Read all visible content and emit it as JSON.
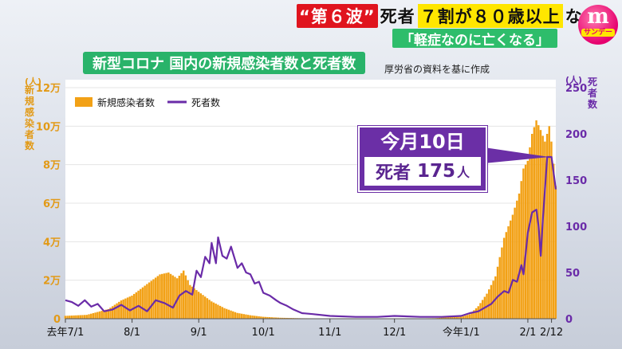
{
  "header": {
    "tag": "“第６波”",
    "text1": "死者",
    "highlight": "７割が８０歳以上",
    "text2": "なぜ",
    "sub": "「軽症なのに亡くなる」"
  },
  "logo": {
    "mark": "m",
    "name": "サンデー"
  },
  "chart_data": {
    "type": "bar+line",
    "title": "新型コロナ 国内の新規感染者数と死者数",
    "source": "厚労省の資料を基に作成",
    "left_axis": {
      "unit": "(人)",
      "label": "新規感染者数",
      "ticks": [
        0,
        20000,
        40000,
        60000,
        80000,
        100000,
        120000
      ],
      "tick_labels": [
        "0",
        "2万",
        "4万",
        "6万",
        "8万",
        "10万",
        "12万"
      ],
      "range": [
        0,
        120000
      ],
      "color": "#f2a116"
    },
    "right_axis": {
      "unit": "(人)",
      "label": "死者数",
      "ticks": [
        0,
        50,
        100,
        150,
        200,
        250
      ],
      "tick_labels": [
        "0",
        "50",
        "100",
        "150",
        "200",
        "250"
      ],
      "range": [
        0,
        250
      ],
      "color": "#6a2ba8"
    },
    "x_ticks": [
      {
        "day": 0,
        "label": "去年7/1"
      },
      {
        "day": 31,
        "label": "8/1"
      },
      {
        "day": 62,
        "label": "9/1"
      },
      {
        "day": 92,
        "label": "10/1"
      },
      {
        "day": 123,
        "label": "11/1"
      },
      {
        "day": 153,
        "label": "12/1"
      },
      {
        "day": 184,
        "label": "今年1/1"
      },
      {
        "day": 215,
        "label": "2/1"
      },
      {
        "day": 226,
        "label": "2/12"
      }
    ],
    "legend": {
      "cases": "新規感染者数",
      "deaths": "死者数",
      "position": "top-left"
    },
    "cases": [
      [
        0,
        1500
      ],
      [
        10,
        2000
      ],
      [
        20,
        5000
      ],
      [
        26,
        9500
      ],
      [
        31,
        12000
      ],
      [
        38,
        18000
      ],
      [
        44,
        23000
      ],
      [
        48,
        24000
      ],
      [
        52,
        21000
      ],
      [
        55,
        25000
      ],
      [
        58,
        17500
      ],
      [
        62,
        14000
      ],
      [
        68,
        9000
      ],
      [
        74,
        5500
      ],
      [
        80,
        3000
      ],
      [
        86,
        1800
      ],
      [
        92,
        1000
      ],
      [
        100,
        500
      ],
      [
        110,
        250
      ],
      [
        123,
        150
      ],
      [
        140,
        120
      ],
      [
        153,
        130
      ],
      [
        165,
        170
      ],
      [
        172,
        300
      ],
      [
        178,
        800
      ],
      [
        184,
        1000
      ],
      [
        188,
        2300
      ],
      [
        192,
        6500
      ],
      [
        196,
        13000
      ],
      [
        200,
        22000
      ],
      [
        204,
        42000
      ],
      [
        208,
        54000
      ],
      [
        211,
        65000
      ],
      [
        213,
        78000
      ],
      [
        215,
        82000
      ],
      [
        217,
        96000
      ],
      [
        219,
        103000
      ],
      [
        221,
        98000
      ],
      [
        223,
        92000
      ],
      [
        225,
        100000
      ],
      [
        226,
        92000
      ],
      [
        228,
        69000
      ]
    ],
    "deaths": [
      [
        0,
        20
      ],
      [
        3,
        18
      ],
      [
        6,
        14
      ],
      [
        9,
        20
      ],
      [
        12,
        13
      ],
      [
        15,
        16
      ],
      [
        18,
        8
      ],
      [
        22,
        10
      ],
      [
        26,
        15
      ],
      [
        30,
        9
      ],
      [
        34,
        14
      ],
      [
        38,
        8
      ],
      [
        42,
        20
      ],
      [
        46,
        17
      ],
      [
        50,
        12
      ],
      [
        53,
        25
      ],
      [
        56,
        30
      ],
      [
        59,
        26
      ],
      [
        61,
        52
      ],
      [
        63,
        45
      ],
      [
        65,
        67
      ],
      [
        67,
        60
      ],
      [
        68,
        82
      ],
      [
        70,
        60
      ],
      [
        71,
        88
      ],
      [
        73,
        68
      ],
      [
        75,
        65
      ],
      [
        77,
        78
      ],
      [
        80,
        55
      ],
      [
        82,
        60
      ],
      [
        84,
        50
      ],
      [
        86,
        48
      ],
      [
        88,
        38
      ],
      [
        90,
        40
      ],
      [
        92,
        28
      ],
      [
        95,
        25
      ],
      [
        98,
        20
      ],
      [
        100,
        17
      ],
      [
        103,
        14
      ],
      [
        106,
        10
      ],
      [
        110,
        6
      ],
      [
        115,
        5
      ],
      [
        123,
        3
      ],
      [
        135,
        2
      ],
      [
        145,
        2
      ],
      [
        153,
        3
      ],
      [
        165,
        2
      ],
      [
        175,
        2
      ],
      [
        184,
        3
      ],
      [
        188,
        6
      ],
      [
        192,
        8
      ],
      [
        195,
        12
      ],
      [
        198,
        16
      ],
      [
        201,
        24
      ],
      [
        204,
        30
      ],
      [
        206,
        28
      ],
      [
        208,
        42
      ],
      [
        210,
        40
      ],
      [
        212,
        58
      ],
      [
        213,
        48
      ],
      [
        215,
        93
      ],
      [
        217,
        115
      ],
      [
        219,
        118
      ],
      [
        220,
        100
      ],
      [
        221,
        68
      ],
      [
        222,
        108
      ],
      [
        224,
        175
      ],
      [
        226,
        175
      ],
      [
        228,
        140
      ]
    ],
    "callout": {
      "line1": "今月10日",
      "label": "死者",
      "value": "175",
      "unit": "人",
      "day": 225,
      "deaths": 175
    }
  }
}
